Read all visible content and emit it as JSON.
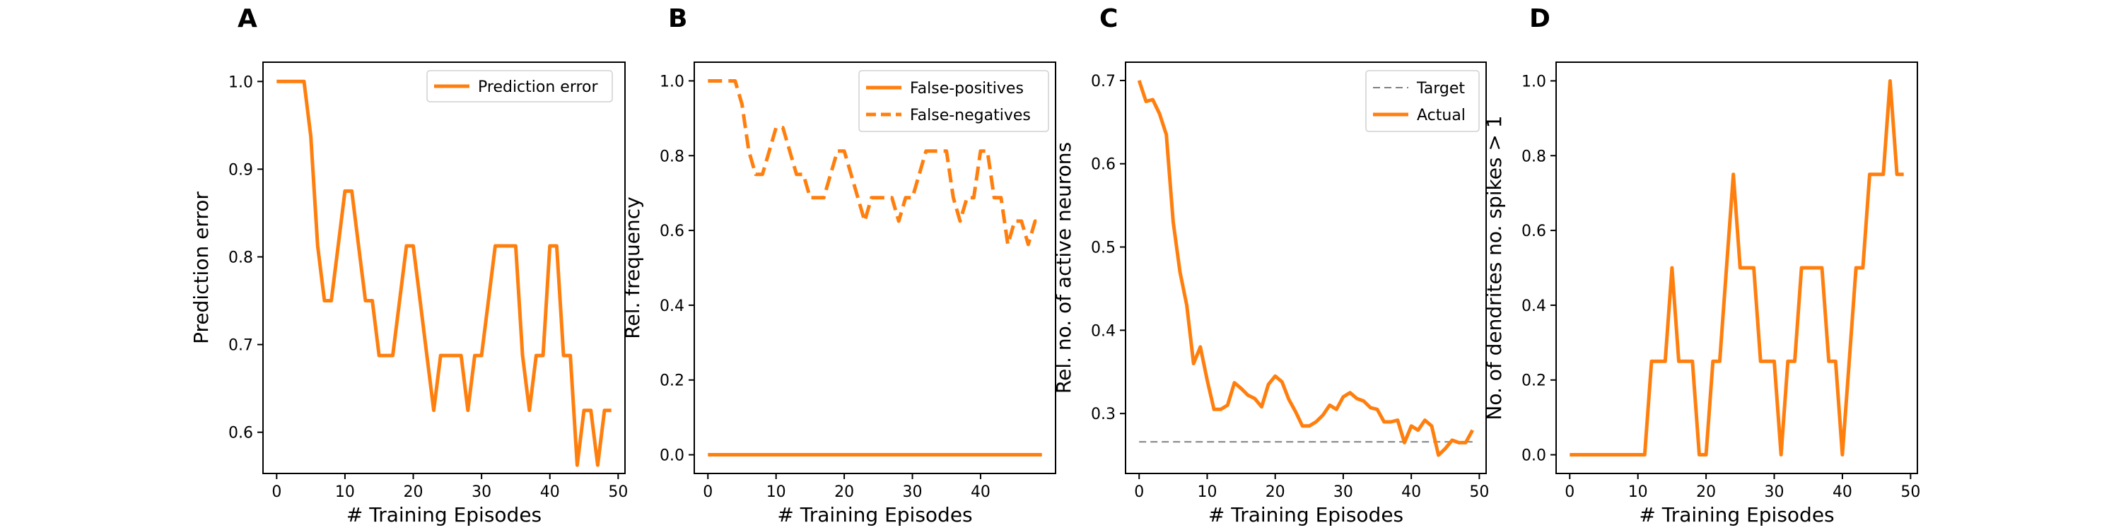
{
  "chart_data": [
    {
      "panel": "A",
      "type": "line",
      "xlabel": "# Training Episodes",
      "ylabel": "Prediction error",
      "xlim": [
        -2,
        51
      ],
      "ylim": [
        0.553,
        1.022
      ],
      "xticks": [
        0,
        10,
        20,
        30,
        40,
        50
      ],
      "yticks": [
        0.6,
        0.7,
        0.8,
        0.9,
        1.0
      ],
      "ytick_labels": [
        "0.6",
        "0.7",
        "0.8",
        "0.9",
        "1.0"
      ],
      "legend": "top-right",
      "x": [
        0,
        1,
        2,
        3,
        4,
        5,
        6,
        7,
        8,
        9,
        10,
        11,
        12,
        13,
        14,
        15,
        16,
        17,
        18,
        19,
        20,
        21,
        22,
        23,
        24,
        25,
        26,
        27,
        28,
        29,
        30,
        31,
        32,
        33,
        34,
        35,
        36,
        37,
        38,
        39,
        40,
        41,
        42,
        43,
        44,
        45,
        46,
        47,
        48,
        49
      ],
      "series": [
        {
          "name": "Prediction error",
          "color": "#ff7f0e",
          "dash": "solid",
          "values": [
            1.0,
            1.0,
            1.0,
            1.0,
            1.0,
            0.9375,
            0.8125,
            0.75,
            0.75,
            0.8125,
            0.875,
            0.875,
            0.8125,
            0.75,
            0.75,
            0.6875,
            0.6875,
            0.6875,
            0.75,
            0.8125,
            0.8125,
            0.75,
            0.6875,
            0.625,
            0.6875,
            0.6875,
            0.6875,
            0.6875,
            0.625,
            0.6875,
            0.6875,
            0.75,
            0.8125,
            0.8125,
            0.8125,
            0.8125,
            0.6875,
            0.625,
            0.6875,
            0.6875,
            0.8125,
            0.8125,
            0.6875,
            0.6875,
            0.5625,
            0.625,
            0.625,
            0.5625,
            0.625,
            0.625
          ]
        }
      ]
    },
    {
      "panel": "B",
      "type": "line",
      "xlabel": "# Training Episodes",
      "ylabel": "Rel. frequency",
      "xlim": [
        -2,
        51
      ],
      "ylim": [
        -0.05,
        1.05
      ],
      "xticks": [
        0,
        10,
        20,
        30,
        40
      ],
      "yticks": [
        0.0,
        0.2,
        0.4,
        0.6,
        0.8,
        1.0
      ],
      "ytick_labels": [
        "0.0",
        "0.2",
        "0.4",
        "0.6",
        "0.8",
        "1.0"
      ],
      "legend": "top-right",
      "x": [
        0,
        1,
        2,
        3,
        4,
        5,
        6,
        7,
        8,
        9,
        10,
        11,
        12,
        13,
        14,
        15,
        16,
        17,
        18,
        19,
        20,
        21,
        22,
        23,
        24,
        25,
        26,
        27,
        28,
        29,
        30,
        31,
        32,
        33,
        34,
        35,
        36,
        37,
        38,
        39,
        40,
        41,
        42,
        43,
        44,
        45,
        46,
        47,
        48,
        49
      ],
      "series": [
        {
          "name": "False-positives",
          "color": "#ff7f0e",
          "dash": "solid",
          "values": [
            0,
            0,
            0,
            0,
            0,
            0,
            0,
            0,
            0,
            0,
            0,
            0,
            0,
            0,
            0,
            0,
            0,
            0,
            0,
            0,
            0,
            0,
            0,
            0,
            0,
            0,
            0,
            0,
            0,
            0,
            0,
            0,
            0,
            0,
            0,
            0,
            0,
            0,
            0,
            0,
            0,
            0,
            0,
            0,
            0,
            0,
            0,
            0,
            0,
            0
          ]
        },
        {
          "name": "False-negatives",
          "color": "#ff7f0e",
          "dash": "dashed",
          "values": [
            1.0,
            1.0,
            1.0,
            1.0,
            1.0,
            0.9375,
            0.8125,
            0.75,
            0.75,
            0.8125,
            0.875,
            0.875,
            0.8125,
            0.75,
            0.75,
            0.6875,
            0.6875,
            0.6875,
            0.75,
            0.8125,
            0.8125,
            0.75,
            0.6875,
            0.625,
            0.6875,
            0.6875,
            0.6875,
            0.6875,
            0.625,
            0.6875,
            0.6875,
            0.75,
            0.8125,
            0.8125,
            0.8125,
            0.8125,
            0.6875,
            0.625,
            0.6875,
            0.6875,
            0.8125,
            0.8125,
            0.6875,
            0.6875,
            0.5625,
            0.625,
            0.625,
            0.5625,
            0.625,
            0.625
          ]
        }
      ]
    },
    {
      "panel": "C",
      "type": "line",
      "xlabel": "# Training Episodes",
      "ylabel": "Rel. no. of active neurons",
      "xlim": [
        -2,
        51
      ],
      "ylim": [
        0.228,
        0.722
      ],
      "xticks": [
        0,
        10,
        20,
        30,
        40,
        50
      ],
      "yticks": [
        0.3,
        0.4,
        0.5,
        0.6,
        0.7
      ],
      "ytick_labels": [
        "0.3",
        "0.4",
        "0.5",
        "0.6",
        "0.7"
      ],
      "legend": "top-right",
      "x": [
        0,
        1,
        2,
        3,
        4,
        5,
        6,
        7,
        8,
        9,
        10,
        11,
        12,
        13,
        14,
        15,
        16,
        17,
        18,
        19,
        20,
        21,
        22,
        23,
        24,
        25,
        26,
        27,
        28,
        29,
        30,
        31,
        32,
        33,
        34,
        35,
        36,
        37,
        38,
        39,
        40,
        41,
        42,
        43,
        44,
        45,
        46,
        47,
        48,
        49
      ],
      "series": [
        {
          "name": "Target",
          "color": "#808080",
          "dash": "dashed",
          "values": [
            0.266,
            0.266,
            0.266,
            0.266,
            0.266,
            0.266,
            0.266,
            0.266,
            0.266,
            0.266,
            0.266,
            0.266,
            0.266,
            0.266,
            0.266,
            0.266,
            0.266,
            0.266,
            0.266,
            0.266,
            0.266,
            0.266,
            0.266,
            0.266,
            0.266,
            0.266,
            0.266,
            0.266,
            0.266,
            0.266,
            0.266,
            0.266,
            0.266,
            0.266,
            0.266,
            0.266,
            0.266,
            0.266,
            0.266,
            0.266,
            0.266,
            0.266,
            0.266,
            0.266,
            0.266,
            0.266,
            0.266,
            0.266,
            0.266,
            0.266
          ]
        },
        {
          "name": "Actual",
          "color": "#ff7f0e",
          "dash": "solid",
          "values": [
            0.7,
            0.675,
            0.677,
            0.66,
            0.635,
            0.53,
            0.47,
            0.43,
            0.36,
            0.38,
            0.34,
            0.305,
            0.305,
            0.31,
            0.337,
            0.33,
            0.322,
            0.318,
            0.308,
            0.335,
            0.345,
            0.338,
            0.317,
            0.302,
            0.285,
            0.285,
            0.29,
            0.298,
            0.31,
            0.305,
            0.32,
            0.325,
            0.318,
            0.315,
            0.307,
            0.305,
            0.29,
            0.29,
            0.292,
            0.265,
            0.285,
            0.28,
            0.292,
            0.285,
            0.25,
            0.258,
            0.268,
            0.265,
            0.265,
            0.28
          ]
        }
      ]
    },
    {
      "panel": "D",
      "type": "line",
      "xlabel": "# Training Episodes",
      "ylabel": "No. of dendrites no. spikes > 1",
      "xlim": [
        -2,
        51
      ],
      "ylim": [
        -0.05,
        1.05
      ],
      "xticks": [
        0,
        10,
        20,
        30,
        40,
        50
      ],
      "yticks": [
        0.0,
        0.2,
        0.4,
        0.6,
        0.8,
        1.0
      ],
      "ytick_labels": [
        "0.0",
        "0.2",
        "0.4",
        "0.6",
        "0.8",
        "1.0"
      ],
      "legend": null,
      "x": [
        0,
        1,
        2,
        3,
        4,
        5,
        6,
        7,
        8,
        9,
        10,
        11,
        12,
        13,
        14,
        15,
        16,
        17,
        18,
        19,
        20,
        21,
        22,
        23,
        24,
        25,
        26,
        27,
        28,
        29,
        30,
        31,
        32,
        33,
        34,
        35,
        36,
        37,
        38,
        39,
        40,
        41,
        42,
        43,
        44,
        45,
        46,
        47,
        48,
        49
      ],
      "series": [
        {
          "name": "",
          "color": "#ff7f0e",
          "dash": "solid",
          "values": [
            0,
            0,
            0,
            0,
            0,
            0,
            0,
            0,
            0,
            0,
            0,
            0,
            0.25,
            0.25,
            0.25,
            0.5,
            0.25,
            0.25,
            0.25,
            0,
            0,
            0.25,
            0.25,
            0.5,
            0.75,
            0.5,
            0.5,
            0.5,
            0.25,
            0.25,
            0.25,
            0,
            0.25,
            0.25,
            0.5,
            0.5,
            0.5,
            0.5,
            0.25,
            0.25,
            0,
            0.25,
            0.5,
            0.5,
            0.75,
            0.75,
            0.75,
            1.0,
            0.75,
            0.75
          ]
        }
      ]
    }
  ]
}
